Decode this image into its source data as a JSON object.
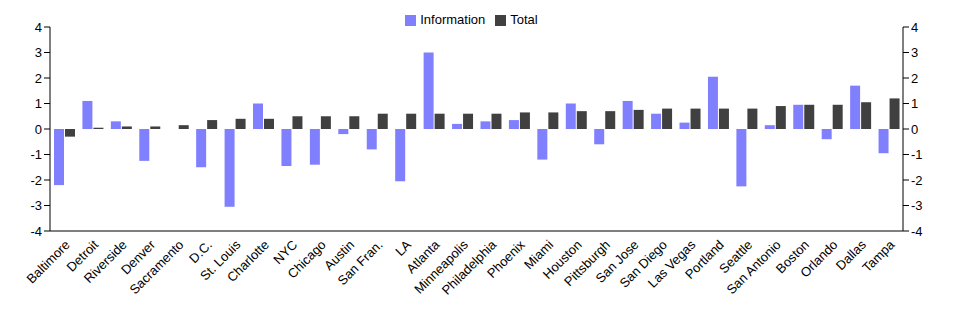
{
  "chart_data": {
    "type": "bar",
    "categories": [
      "Baltimore",
      "Detroit",
      "Riverside",
      "Denver",
      "Sacramento",
      "D.C.",
      "St. Louis",
      "Charlotte",
      "NYC",
      "Chicago",
      "Austin",
      "San Fran.",
      "LA",
      "Atlanta",
      "Minneapolis",
      "Philadelphia",
      "Phoenix",
      "Miami",
      "Houston",
      "Pittsburgh",
      "San Jose",
      "San Diego",
      "Las Vegas",
      "Portland",
      "Seattle",
      "San Antonio",
      "Boston",
      "Orlando",
      "Dallas",
      "Tampa"
    ],
    "series": [
      {
        "name": "Information",
        "color": "#8080ff",
        "values": [
          -2.2,
          1.1,
          0.3,
          -1.25,
          0,
          -1.5,
          -3.05,
          1.0,
          -1.45,
          -1.4,
          -0.2,
          -0.8,
          -2.05,
          3.0,
          0.2,
          0.3,
          0.35,
          -1.2,
          1.0,
          -0.6,
          1.1,
          0.6,
          0.25,
          2.05,
          -2.25,
          0.15,
          0.95,
          -0.4,
          1.7,
          -0.95
        ]
      },
      {
        "name": "Total",
        "color": "#404040",
        "values": [
          -0.3,
          0.05,
          0.1,
          0.1,
          0.15,
          0.35,
          0.4,
          0.4,
          0.5,
          0.5,
          0.5,
          0.6,
          0.6,
          0.6,
          0.6,
          0.6,
          0.65,
          0.65,
          0.7,
          0.7,
          0.75,
          0.8,
          0.8,
          0.8,
          0.8,
          0.9,
          0.95,
          0.95,
          1.05,
          1.2
        ]
      }
    ],
    "ylim": [
      -4,
      4
    ],
    "yticks": [
      -4,
      -3,
      -2,
      -1,
      0,
      1,
      2,
      3,
      4
    ],
    "y2lim": [
      -4,
      4
    ],
    "y2ticks": [
      -4,
      -3,
      -2,
      -1,
      0,
      1,
      2,
      3,
      4
    ],
    "grid": false,
    "legend": "top"
  }
}
